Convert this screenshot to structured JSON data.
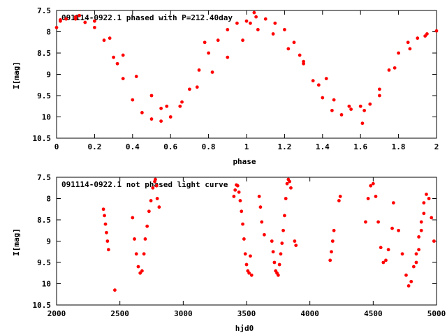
{
  "chart_data": [
    {
      "type": "scatter",
      "title": "091114-0922.1 phased with P=212.40day",
      "xlabel": "phase",
      "ylabel": "I[mag]",
      "xlim": [
        0,
        2
      ],
      "ylim": [
        10.5,
        7.5
      ],
      "y_inverted": true,
      "x_ticks": [
        "0",
        "0.2",
        "0.4",
        "0.6",
        "0.8",
        "1",
        "1.2",
        "1.4",
        "1.6",
        "1.8",
        "2"
      ],
      "y_ticks": [
        "7.5",
        "8",
        "8.5",
        "9",
        "9.5",
        "10",
        "10.5"
      ],
      "grid": false,
      "color": "#ff0000",
      "x": [
        0.0,
        0.02,
        0.05,
        0.1,
        0.15,
        0.2,
        0.25,
        0.3,
        0.35,
        0.4,
        0.45,
        0.5,
        0.55,
        0.6,
        0.65,
        0.7,
        0.75,
        0.8,
        0.85,
        0.9,
        0.95,
        1.0,
        1.02,
        1.05,
        1.1,
        1.15,
        1.2,
        1.25,
        1.3,
        1.35,
        1.4,
        1.45,
        1.5,
        1.55,
        1.6,
        1.65,
        1.7,
        1.75,
        1.8,
        1.85,
        1.9,
        1.95,
        2.0,
        0.02,
        0.1,
        0.2,
        0.28,
        0.35,
        0.42,
        0.5,
        0.58,
        0.66,
        0.74,
        0.82,
        0.9,
        0.98,
        1.06,
        1.14,
        1.22,
        1.3,
        1.38,
        1.46,
        1.54,
        1.62,
        1.7,
        1.78,
        1.86,
        1.94,
        0.12,
        0.32,
        0.55,
        0.78,
        1.04,
        1.28,
        1.42,
        1.61
      ],
      "y": [
        7.9,
        7.75,
        7.7,
        7.7,
        7.78,
        7.9,
        8.2,
        8.6,
        9.1,
        9.6,
        9.9,
        10.05,
        10.1,
        10.0,
        9.75,
        9.35,
        8.9,
        8.5,
        8.2,
        7.95,
        7.8,
        7.75,
        7.8,
        7.65,
        7.7,
        7.8,
        7.95,
        8.25,
        8.7,
        9.15,
        9.55,
        9.85,
        9.95,
        9.82,
        9.75,
        9.7,
        9.35,
        8.9,
        8.5,
        8.25,
        8.15,
        8.05,
        7.98,
        7.72,
        7.65,
        7.75,
        8.15,
        8.55,
        9.05,
        9.5,
        9.75,
        9.65,
        9.3,
        8.95,
        8.6,
        8.2,
        7.95,
        8.05,
        8.4,
        8.75,
        9.25,
        9.6,
        9.75,
        9.85,
        9.5,
        8.85,
        8.4,
        8.1,
        7.62,
        8.75,
        9.8,
        8.25,
        7.55,
        8.55,
        9.1,
        10.15
      ]
    },
    {
      "type": "scatter",
      "title": "091114-0922.1 not phased light curve",
      "xlabel": "hjd0",
      "ylabel": "I[mag]",
      "xlim": [
        2000,
        5000
      ],
      "ylim": [
        10.5,
        7.5
      ],
      "y_inverted": true,
      "x_ticks": [
        "2000",
        "2500",
        "3000",
        "3500",
        "4000",
        "4500",
        "5000"
      ],
      "y_ticks": [
        "7.5",
        "8",
        "8.5",
        "9",
        "9.5",
        "10",
        "10.5"
      ],
      "grid": false,
      "color": "#ff0000",
      "x": [
        2370,
        2378,
        2386,
        2394,
        2402,
        2410,
        2460,
        2600,
        2615,
        2630,
        2645,
        2660,
        2675,
        2690,
        2700,
        2715,
        2730,
        2745,
        2760,
        2775,
        2780,
        2790,
        2795,
        2810,
        3400,
        3410,
        3420,
        3430,
        3440,
        3450,
        3460,
        3470,
        3480,
        3490,
        3500,
        3510,
        3520,
        3530,
        3540,
        3600,
        3610,
        3620,
        3640,
        3700,
        3710,
        3720,
        3730,
        3740,
        3750,
        3760,
        3770,
        3780,
        3790,
        3800,
        3810,
        3820,
        3830,
        3840,
        3850,
        3880,
        3890,
        4160,
        4170,
        4180,
        4190,
        4230,
        4240,
        4440,
        4460,
        4480,
        4500,
        4520,
        4540,
        4560,
        4580,
        4600,
        4620,
        4650,
        4660,
        4700,
        4730,
        4760,
        4780,
        4800,
        4820,
        4840,
        4860,
        4880,
        4900,
        4920,
        4940,
        4960,
        4980
      ],
      "y": [
        8.25,
        8.4,
        8.6,
        8.8,
        9.0,
        9.2,
        10.15,
        8.45,
        8.95,
        9.3,
        9.6,
        9.75,
        9.7,
        9.3,
        8.95,
        8.65,
        8.3,
        8.05,
        7.75,
        7.6,
        7.55,
        7.7,
        8.0,
        8.2,
        7.95,
        7.8,
        7.68,
        7.7,
        7.85,
        8.05,
        8.3,
        8.6,
        8.95,
        9.3,
        9.55,
        9.7,
        9.75,
        9.35,
        9.8,
        7.95,
        8.2,
        8.55,
        8.85,
        9.0,
        9.25,
        9.5,
        9.7,
        9.75,
        9.8,
        9.55,
        9.3,
        9.05,
        8.75,
        8.4,
        8.0,
        7.65,
        7.55,
        7.6,
        7.75,
        9.0,
        9.1,
        9.45,
        9.25,
        9.0,
        8.75,
        8.05,
        7.95,
        8.55,
        8.0,
        7.7,
        7.65,
        7.95,
        8.55,
        9.15,
        9.5,
        9.45,
        9.2,
        8.7,
        8.1,
        8.75,
        9.3,
        9.8,
        10.05,
        9.95,
        9.6,
        9.3,
        8.9,
        8.55,
        8.1,
        7.9,
        8.0,
        8.45,
        9.0
      ],
      "extra_points_x": [
        4840,
        4860,
        4880,
        4900
      ],
      "extra_points_y": [
        9.5,
        9.2,
        8.75,
        8.35
      ]
    }
  ]
}
